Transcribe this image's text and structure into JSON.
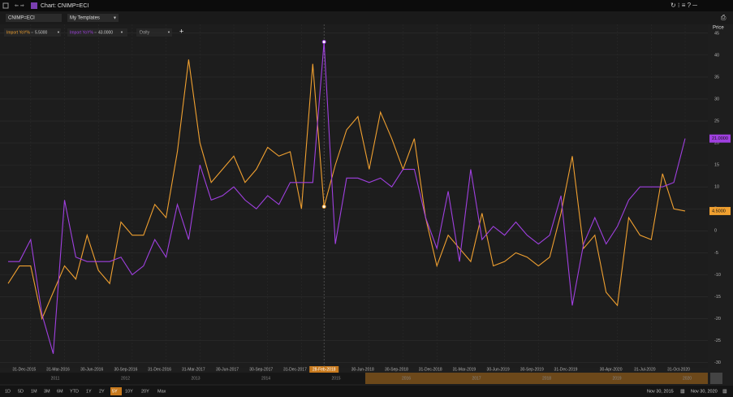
{
  "window": {
    "title": "Chart: CNIMP=ECI"
  },
  "toolbar": {
    "ric": "CNIMP=ECI",
    "template": "My Templates",
    "interval": "Daily",
    "add": "+"
  },
  "chart_data": {
    "type": "line",
    "y_label": "Price",
    "categories": [
      null,
      null,
      "31-Dec-2015",
      null,
      null,
      "31-Mar-2016",
      null,
      null,
      "30-Jun-2016",
      null,
      null,
      "30-Sep-2016",
      null,
      null,
      "31-Dec-2016",
      null,
      null,
      "31-Mar-2017",
      null,
      null,
      "30-Jun-2017",
      null,
      null,
      "30-Sep-2017",
      null,
      null,
      "31-Dec-2017",
      null,
      "28-Feb-2018",
      null,
      null,
      null,
      "30-Jun-2018",
      null,
      null,
      "30-Sep-2018",
      null,
      null,
      "31-Dec-2018",
      null,
      null,
      "31-Mar-2019",
      null,
      null,
      "30-Jun-2019",
      null,
      null,
      "30-Sep-2019",
      null,
      null,
      "31-Dec-2019",
      null,
      null,
      null,
      "30-Apr-2020",
      null,
      null,
      "31-Jul-2020",
      null,
      null,
      "31-Oct-2020"
    ],
    "series": [
      {
        "name": "Import YoY%",
        "color": "#f0a030",
        "legend_value": "5.5000",
        "last_label": "4.5000",
        "values": [
          -12,
          -8,
          -8,
          -20,
          -14,
          -8,
          -11,
          -1,
          -9,
          -12,
          2,
          -1,
          -1,
          6,
          3,
          18,
          39,
          20,
          11,
          14,
          17,
          11,
          14,
          19,
          17,
          18,
          5,
          38,
          5.5,
          15,
          23,
          26,
          14,
          27,
          21,
          14,
          21,
          3,
          -8,
          -1,
          -4,
          -7,
          4,
          -8,
          -7,
          -5,
          -6,
          -8,
          -6,
          4,
          17,
          -4,
          -1,
          -14,
          -17,
          3,
          -1,
          -2,
          13,
          5,
          4.5
        ]
      },
      {
        "name": "Import YoY%",
        "color": "#a040e0",
        "legend_value": "43.0000",
        "last_label": "21.0000",
        "values": [
          -7,
          -7,
          -2,
          -19,
          -28,
          7,
          -6,
          -7,
          -7,
          -7,
          -6,
          -10,
          -8,
          -2,
          -6,
          6,
          -2,
          15,
          7,
          8,
          10,
          7,
          5,
          8,
          6,
          11,
          11,
          11,
          43,
          -3,
          12,
          12,
          11,
          12,
          10,
          14,
          14,
          3,
          -4,
          9,
          -7,
          14,
          -2,
          1,
          -1,
          2,
          -1,
          -3,
          -1,
          8,
          -17,
          -3,
          3,
          -3,
          1,
          7,
          10,
          10,
          10,
          11,
          21
        ]
      }
    ],
    "ylim": [
      -31,
      47
    ],
    "yticks": [
      -30,
      -25,
      -20,
      -15,
      -10,
      -5,
      0,
      5,
      10,
      15,
      20,
      25,
      30,
      35,
      40,
      45
    ],
    "grid": true,
    "cursor_index": 28
  },
  "navigator": {
    "years": [
      "2011",
      "2012",
      "2013",
      "2014",
      "2015",
      "2016",
      "2017",
      "2018",
      "2019",
      "2020"
    ]
  },
  "periods": {
    "items": [
      "1D",
      "5D",
      "1M",
      "3M",
      "6M",
      "YTD",
      "1Y",
      "2Y",
      "5Y",
      "10Y",
      "20Y",
      "Max"
    ],
    "selected": 8
  },
  "range": {
    "start": "Nov 30, 2015",
    "end": "Nov 30, 2020"
  }
}
